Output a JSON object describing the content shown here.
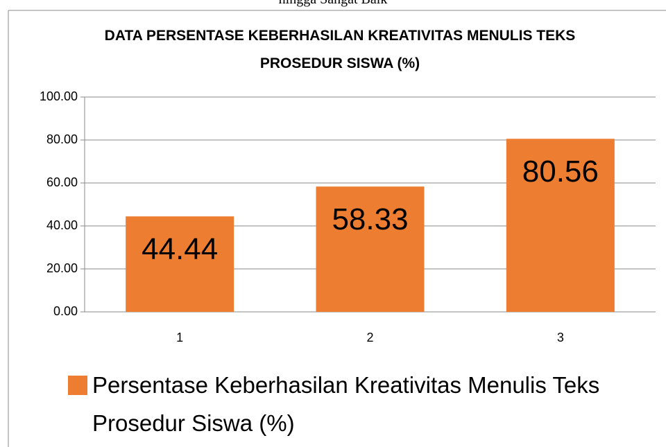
{
  "chart_data": {
    "type": "bar",
    "annotations": [
      "hingga Sangat Baik"
    ],
    "title": "DATA PERSENTASE KEBERHASILAN KREATIVITAS MENULIS TEKS PROSEDUR SISWA (%)",
    "categories": [
      "1",
      "2",
      "3"
    ],
    "series": [
      {
        "name": "Persentase Keberhasilan Kreativitas Menulis Teks Prosedur Siswa (%)",
        "color": "#ed7d31",
        "values": [
          44.44,
          58.33,
          80.56
        ]
      }
    ],
    "ylim": [
      0,
      100
    ],
    "yticks": [
      {
        "value": 0,
        "label": "0.00"
      },
      {
        "value": 20,
        "label": "20.00"
      },
      {
        "value": 40,
        "label": "40.00"
      },
      {
        "value": 60,
        "label": "60.00"
      },
      {
        "value": 80,
        "label": "80.00"
      },
      {
        "value": 100,
        "label": "100.00"
      }
    ],
    "grid": true,
    "legend": "bottom"
  }
}
